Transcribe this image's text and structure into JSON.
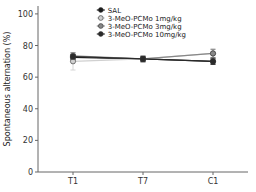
{
  "chart_data": {
    "type": "line",
    "categories": [
      "T1",
      "T7",
      "C1"
    ],
    "series": [
      {
        "name": "SAL",
        "color": "#1a1a1a",
        "marker": "circle",
        "values": [
          72.5,
          71.5,
          70.0
        ],
        "errors": [
          1.5,
          1.5,
          1.5
        ]
      },
      {
        "name": "3-MeO-PCMo 1mg/kg",
        "color": "#d0d0d0",
        "marker": "circle",
        "values": [
          70.0,
          71.5,
          75.0
        ],
        "errors": [
          5.5,
          2.0,
          3.0
        ]
      },
      {
        "name": "3-MeO-PCMo 3mg/kg",
        "color": "#888888",
        "marker": "circle",
        "values": [
          73.5,
          71.5,
          75.0
        ],
        "errors": [
          2.0,
          2.0,
          2.5
        ]
      },
      {
        "name": "3-MeO-PCMo 10mg/kg",
        "color": "#2a2a2a",
        "marker": "circle",
        "values": [
          73.0,
          71.5,
          70.0
        ],
        "errors": [
          1.5,
          1.5,
          2.0
        ]
      }
    ],
    "y_label": "Spontaneous alternation (%)",
    "ylim": [
      0,
      105
    ],
    "yticks": [
      0,
      20,
      40,
      60,
      80,
      100
    ],
    "grid": false,
    "legend": "upper left"
  }
}
